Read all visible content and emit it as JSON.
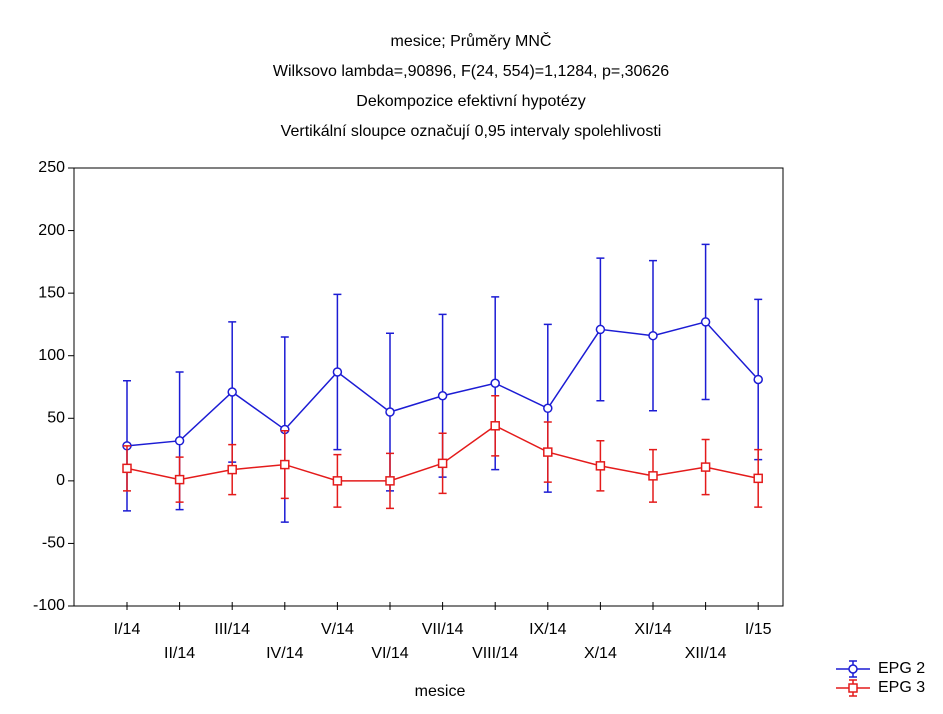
{
  "chart_data": {
    "type": "line",
    "title": "mesice; Průměry MNČ",
    "subtitle": [
      "Wilksovo lambda=,90896, F(24, 554)=1,1284, p=,30626",
      "Dekompozice efektivní hypotézy",
      "Vertikální sloupce označují 0,95 intervaly spolehlivosti"
    ],
    "xlabel": "mesice",
    "categories": [
      "I/14",
      "II/14",
      "III/14",
      "IV/14",
      "V/14",
      "VI/14",
      "VII/14",
      "VIII/14",
      "IX/14",
      "X/14",
      "XI/14",
      "XII/14",
      "I/15"
    ],
    "series": [
      {
        "name": "EPG 2",
        "color": "#1c1cd4",
        "marker": "circle",
        "values": [
          28,
          32,
          71,
          41,
          87,
          55,
          68,
          78,
          58,
          121,
          116,
          127,
          81
        ],
        "errors": [
          52,
          55,
          56,
          74,
          62,
          63,
          65,
          69,
          67,
          57,
          60,
          62,
          64
        ]
      },
      {
        "name": "EPG 3",
        "color": "#e41b1b",
        "marker": "square",
        "values": [
          10,
          1,
          9,
          13,
          0,
          0,
          14,
          44,
          23,
          12,
          4,
          11,
          2
        ],
        "errors": [
          18,
          18,
          20,
          27,
          21,
          22,
          24,
          24,
          24,
          20,
          21,
          22,
          23
        ]
      }
    ],
    "ylim": [
      -100,
      250
    ],
    "yticks": [
      -100,
      -50,
      0,
      50,
      100,
      150,
      200,
      250
    ],
    "legend": "lower right"
  }
}
